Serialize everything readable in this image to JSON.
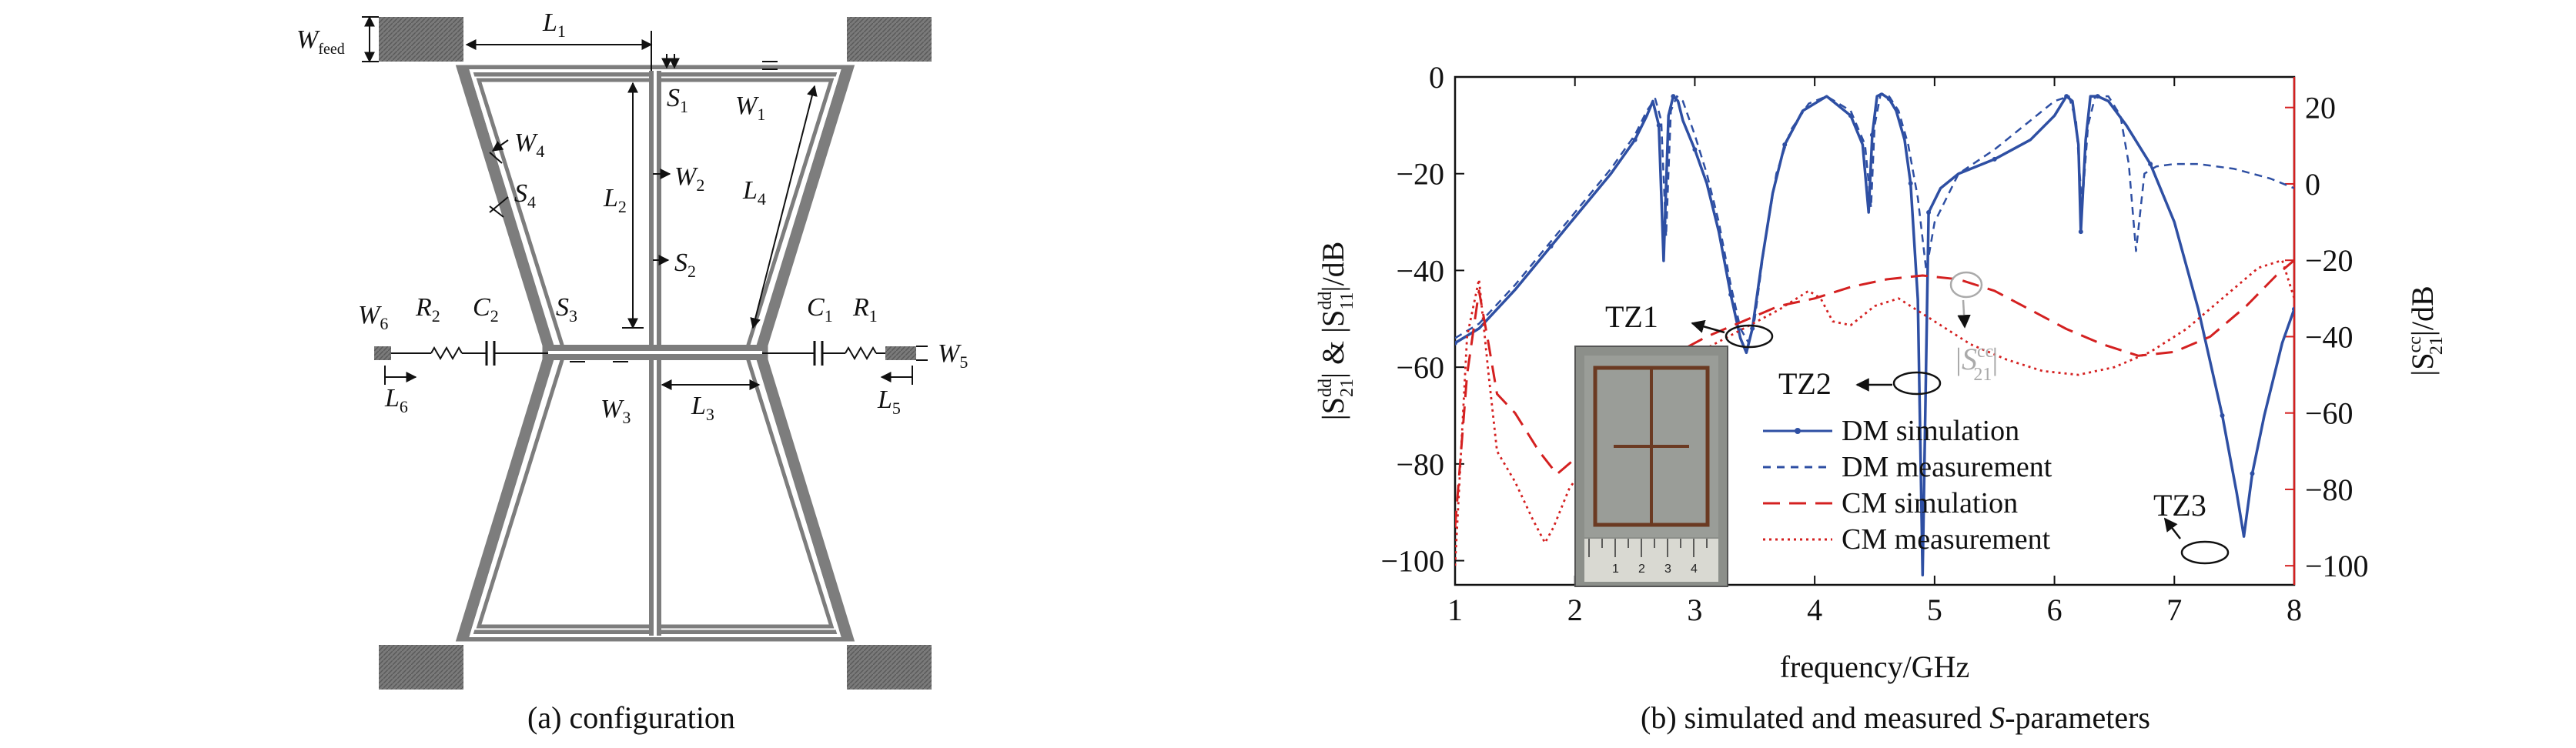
{
  "figure_a": {
    "caption": "(a) configuration",
    "labels": {
      "wfeed_main": "W",
      "wfeed_sub": "feed",
      "l1_main": "L",
      "l1_sub": "1",
      "s1_main": "S",
      "s1_sub": "1",
      "w1_main": "W",
      "w1_sub": "1",
      "w4_main": "W",
      "w4_sub": "4",
      "s4_main": "S",
      "s4_sub": "4",
      "l2_main": "L",
      "l2_sub": "2",
      "w2_main": "W",
      "w2_sub": "2",
      "l4_main": "L",
      "l4_sub": "4",
      "s2_main": "S",
      "s2_sub": "2",
      "w6_main": "W",
      "w6_sub": "6",
      "r2_main": "R",
      "r2_sub": "2",
      "c2_main": "C",
      "c2_sub": "2",
      "s3_main": "S",
      "s3_sub": "3",
      "c1_main": "C",
      "c1_sub": "1",
      "r1_main": "R",
      "r1_sub": "1",
      "w5_main": "W",
      "w5_sub": "5",
      "l6_main": "L",
      "l6_sub": "6",
      "w3_main": "W",
      "w3_sub": "3",
      "l3_main": "L",
      "l3_sub": "3",
      "l5_main": "L",
      "l5_sub": "5"
    }
  },
  "figure_b": {
    "caption_prefix": "(b) simulated and measured ",
    "caption_italic": "S",
    "caption_suffix": "-parameters",
    "colors": {
      "dm": "#2e4fa3",
      "cm": "#d42020",
      "inset_bg": "#8c8f8a"
    },
    "annotations": {
      "tz1": "TZ1",
      "tz2": "TZ2",
      "tz3": "TZ3",
      "s21cc_main": "|S",
      "s21cc_sup": "cc",
      "s21cc_sub": "21",
      "s21cc_end": "|"
    },
    "ylabel_left": {
      "p1": "|S",
      "p1_sup": "dd",
      "p1_sub": "21",
      "amp": "| & |S",
      "p2_sup": "dd",
      "p2_sub": "11",
      "tail": "|/dB"
    },
    "ylabel_right": {
      "p1": "|S",
      "p1_sup": "cc",
      "p1_sub": "21",
      "tail": "|/dB"
    }
  },
  "chart_data": {
    "type": "line",
    "xlabel": "frequency/GHz",
    "xlim": [
      1,
      8
    ],
    "x_ticks": [
      "1",
      "2",
      "3",
      "4",
      "5",
      "6",
      "7",
      "8"
    ],
    "ylim_left": [
      -105,
      0
    ],
    "y_ticks_left": [
      "0",
      "−20",
      "−40",
      "−60",
      "−80",
      "−100"
    ],
    "ylim_right": [
      -105,
      28
    ],
    "y_ticks_right": [
      "20",
      "0",
      "−20",
      "−40",
      "−60",
      "−80",
      "−100"
    ],
    "legend_position": "lower-center",
    "series": [
      {
        "name": "DM simulation",
        "axis": "left",
        "style": "solid-dot",
        "x": [
          1.0,
          1.2,
          1.5,
          1.8,
          2.1,
          2.3,
          2.5,
          2.6,
          2.65,
          2.7,
          2.74,
          2.78,
          2.82,
          2.86,
          2.9,
          3.0,
          3.1,
          3.2,
          3.3,
          3.38,
          3.43,
          3.48,
          3.56,
          3.65,
          3.75,
          3.9,
          4.1,
          4.3,
          4.4,
          4.45,
          4.48,
          4.52,
          4.56,
          4.62,
          4.68,
          4.75,
          4.8,
          4.86,
          4.9,
          4.95,
          5.05,
          5.2,
          5.5,
          5.8,
          6.0,
          6.1,
          6.15,
          6.2,
          6.22,
          6.26,
          6.3,
          6.36,
          6.45,
          6.6,
          6.8,
          7.0,
          7.2,
          7.4,
          7.52,
          7.58,
          7.65,
          7.75,
          7.9,
          8.0
        ],
        "y": [
          -55,
          -52,
          -44,
          -35,
          -26,
          -20,
          -13,
          -8,
          -5,
          -10,
          -38,
          -8,
          -4,
          -5,
          -9,
          -15,
          -22,
          -32,
          -45,
          -54,
          -57,
          -52,
          -38,
          -24,
          -14,
          -7,
          -4,
          -8,
          -14,
          -28,
          -12,
          -4,
          -3.5,
          -4.5,
          -7,
          -13,
          -22,
          -46,
          -103,
          -28,
          -23,
          -20,
          -17,
          -13,
          -8,
          -4,
          -5,
          -14,
          -32,
          -13,
          -4,
          -4,
          -5,
          -10,
          -18,
          -30,
          -48,
          -70,
          -86,
          -95,
          -82,
          -70,
          -55,
          -48
        ]
      },
      {
        "name": "DM measurement",
        "axis": "left",
        "style": "dashed",
        "x": [
          1.0,
          1.2,
          1.5,
          1.8,
          2.1,
          2.3,
          2.5,
          2.6,
          2.67,
          2.72,
          2.76,
          2.8,
          2.85,
          2.9,
          3.0,
          3.1,
          3.2,
          3.3,
          3.38,
          3.45,
          3.5,
          3.58,
          3.68,
          3.8,
          3.95,
          4.1,
          4.3,
          4.42,
          4.47,
          4.5,
          4.55,
          4.62,
          4.7,
          4.78,
          4.86,
          4.93,
          5.0,
          5.2,
          5.5,
          5.8,
          6.0,
          6.12,
          6.18,
          6.23,
          6.28,
          6.34,
          6.45,
          6.55,
          6.62,
          6.68,
          6.75,
          6.85,
          7.0,
          7.2,
          7.5,
          7.8,
          8.0
        ],
        "y": [
          -54,
          -51,
          -43,
          -34,
          -25,
          -19,
          -12,
          -7,
          -4.5,
          -9,
          -33,
          -7,
          -4,
          -5,
          -12,
          -20,
          -30,
          -43,
          -52,
          -55,
          -50,
          -35,
          -20,
          -11,
          -5.5,
          -4,
          -7,
          -14,
          -27,
          -10,
          -3.5,
          -4,
          -7,
          -14,
          -25,
          -40,
          -30,
          -20,
          -15,
          -9,
          -5,
          -4,
          -9,
          -27,
          -10,
          -4,
          -4,
          -8,
          -18,
          -36,
          -20,
          -18.5,
          -18,
          -18,
          -19,
          -21,
          -23
        ]
      },
      {
        "name": "CM simulation",
        "axis": "right",
        "style": "long-dash",
        "x": [
          1.0,
          1.1,
          1.2,
          1.28,
          1.35,
          1.5,
          1.7,
          1.85,
          2.0,
          2.2,
          2.5,
          2.8,
          3.1,
          3.4,
          3.7,
          4.0,
          4.3,
          4.6,
          4.9,
          5.2,
          5.5,
          5.8,
          6.1,
          6.4,
          6.7,
          7.0,
          7.3,
          7.6,
          7.85,
          8.0
        ],
        "y": [
          -90,
          -50,
          -28,
          -42,
          -55,
          -60,
          -70,
          -76,
          -72,
          -62,
          -52,
          -45,
          -40,
          -36,
          -32,
          -30,
          -27,
          -25,
          -24,
          -25,
          -28,
          -33,
          -38,
          -42,
          -45,
          -44,
          -40,
          -32,
          -24,
          -20
        ]
      },
      {
        "name": "CM measurement",
        "axis": "right",
        "style": "dotted",
        "x": [
          1.0,
          1.1,
          1.2,
          1.28,
          1.35,
          1.5,
          1.65,
          1.75,
          1.82,
          1.95,
          2.2,
          2.5,
          2.8,
          3.1,
          3.4,
          3.7,
          3.95,
          4.05,
          4.15,
          4.3,
          4.5,
          4.7,
          4.9,
          5.1,
          5.3,
          5.6,
          5.9,
          6.2,
          6.5,
          6.8,
          7.1,
          7.4,
          7.7,
          7.9,
          8.0
        ],
        "y": [
          -100,
          -40,
          -25,
          -50,
          -70,
          -78,
          -88,
          -94,
          -90,
          -80,
          -68,
          -58,
          -50,
          -43,
          -38,
          -33,
          -28,
          -30,
          -36,
          -37,
          -32,
          -30,
          -34,
          -38,
          -42,
          -46,
          -49,
          -50,
          -48,
          -44,
          -38,
          -30,
          -22,
          -20,
          -30
        ]
      }
    ]
  }
}
